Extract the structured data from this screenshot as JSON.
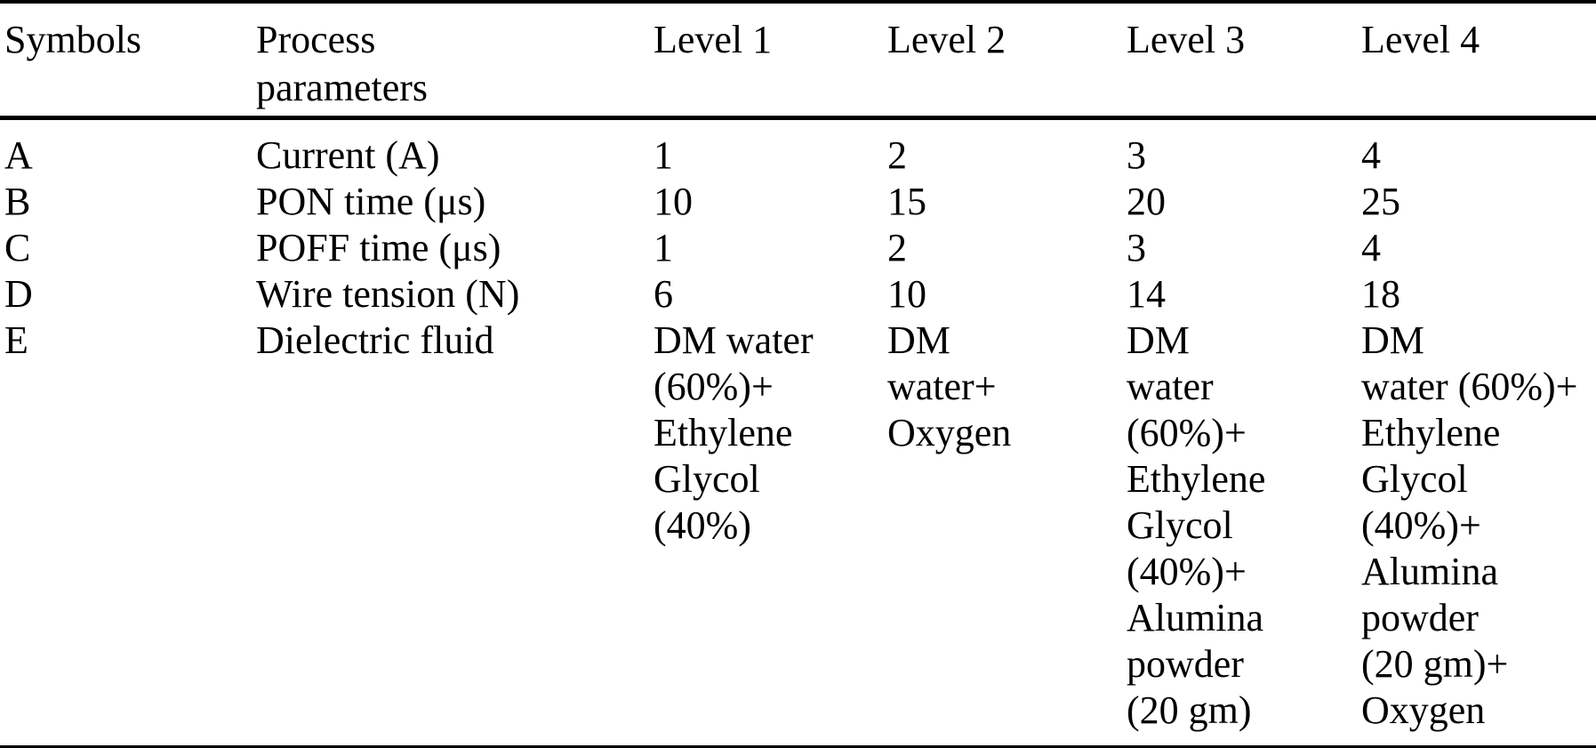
{
  "colors": {
    "text": "#000000",
    "background": "#ffffff",
    "rule": "#000000"
  },
  "table": {
    "headers": [
      "Symbols",
      "Process\nparameters",
      "Level 1",
      "Level 2",
      "Level 3",
      "Level 4"
    ],
    "rows": [
      {
        "symbol": "A",
        "parameter": "Current (A)",
        "levels": [
          "1",
          "2",
          "3",
          "4"
        ]
      },
      {
        "symbol": "B",
        "parameter": "PON time (μs)",
        "levels": [
          "10",
          "15",
          "20",
          "25"
        ]
      },
      {
        "symbol": "C",
        "parameter": "POFF time (μs)",
        "levels": [
          "1",
          "2",
          "3",
          "4"
        ]
      },
      {
        "symbol": "D",
        "parameter": "Wire tension (N)",
        "levels": [
          "6",
          "10",
          "14",
          "18"
        ]
      },
      {
        "symbol": "E",
        "parameter": "Dielectric fluid",
        "levels": [
          "DM water\n(60%)+\nEthylene\nGlycol\n(40%)",
          "DM\nwater+\nOxygen",
          "DM\nwater\n(60%)+\nEthylene\nGlycol\n(40%)+\nAlumina\npowder\n(20 gm)",
          "DM\nwater (60%)+\nEthylene\nGlycol\n(40%)+\nAlumina\npowder\n(20 gm)+\nOxygen"
        ]
      }
    ]
  }
}
